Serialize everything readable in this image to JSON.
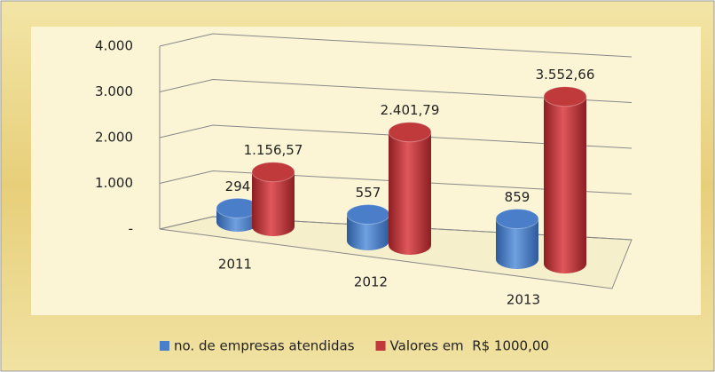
{
  "chart_data": {
    "type": "bar3d",
    "categories": [
      "2011",
      "2012",
      "2013"
    ],
    "series": [
      {
        "name": "no. de empresas atendidas",
        "color": "#4a7ec8",
        "values": [
          294,
          557,
          859
        ]
      },
      {
        "name": "Valores em  R$ 1000,00",
        "color": "#c0393b",
        "values": [
          1156.57,
          2401.79,
          3552.66
        ],
        "value_labels": [
          "1.156,57",
          "2.401,79",
          "3.552,66"
        ]
      }
    ],
    "ylim": [
      0,
      4000
    ],
    "yticks": [
      {
        "value": 0,
        "label": "-"
      },
      {
        "value": 1000,
        "label": "1.000"
      },
      {
        "value": 2000,
        "label": "2.000"
      },
      {
        "value": 3000,
        "label": "3.000"
      },
      {
        "value": 4000,
        "label": "4.000"
      }
    ],
    "grid": true,
    "legend": "bottom"
  }
}
